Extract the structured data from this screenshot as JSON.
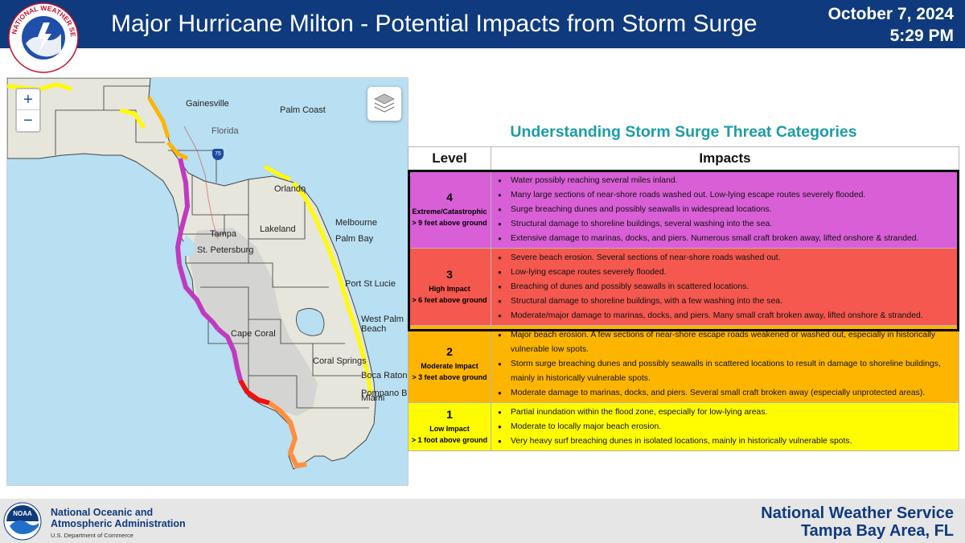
{
  "header": {
    "title": "Major Hurricane Milton - Potential Impacts from Storm Surge",
    "date": "October 7, 2024",
    "time": "5:29 PM",
    "logo_text": "NATIONAL WEATHER SERVICE",
    "logo_icon": "nws-logo",
    "background_color": "#0f3a7d"
  },
  "map": {
    "zoom_in_label": "+",
    "zoom_out_label": "−",
    "layers_icon": "layers-icon",
    "interstate_shield": "75",
    "places": [
      "Gainesville",
      "Palm Coast",
      "Florida",
      "Orlando",
      "Tampa",
      "Lakeland",
      "Melbourne",
      "Palm Bay",
      "St. Petersburg",
      "Port St Lucie",
      "West Palm",
      "Beach",
      "Cape Coral",
      "Boca Raton",
      "Coral Springs",
      "Pompano Be",
      "Miami"
    ],
    "water_color": "#b8dff2",
    "land_color": "#e6e6dc"
  },
  "table": {
    "title": "Understanding Storm Surge Threat Categories",
    "header_level": "Level",
    "header_impacts": "Impacts",
    "levels": [
      {
        "num": "4",
        "name": "Extreme/Catastrophic",
        "sub": "> 9 feet above ground",
        "color": "#d95fd7",
        "impacts": [
          "Water possibly reaching several miles inland.",
          "Many large sections of near-shore roads washed out. Low-lying escape routes severely flooded.",
          "Surge breaching dunes and possibly seawalls in widespread locations.",
          "Structural damage to shoreline buildings, several washing into the sea.",
          "Extensive damage to marinas, docks, and piers. Numerous small craft broken away, lifted onshore & stranded."
        ]
      },
      {
        "num": "3",
        "name": "High Impact",
        "sub": "> 6 feet above ground",
        "color": "#f5584f",
        "impacts": [
          "Severe beach erosion. Several sections of near-shore roads washed out.",
          "Low-lying escape routes severely flooded.",
          "Breaching of dunes and possibly seawalls in scattered locations.",
          "Structural damage to shoreline buildings, with a few washing into the sea.",
          "Moderate/major damage to marinas, docks, and piers. Many small craft broken away, lifted onshore & stranded."
        ]
      },
      {
        "num": "2",
        "name": "Moderate Impact",
        "sub": "> 3 feet above ground",
        "color": "#fdb500",
        "impacts": [
          "Major beach erosion. A few sections of near-shore escape roads weakened or washed out, especially in historically vulnerable low spots.",
          "Storm surge breaching dunes and possibly seawalls in scattered locations to result in damage to shoreline buildings, mainly in historically vulnerable spots.",
          "Moderate damage to marinas, docks, and piers. Several small craft broken away (especially unprotected areas)."
        ]
      },
      {
        "num": "1",
        "name": "Low Impact",
        "sub": "> 1 foot above ground",
        "color": "#fffb00",
        "impacts": [
          "Partial inundation within the flood zone, especially for low-lying areas.",
          "Moderate to locally major beach erosion.",
          "Very heavy surf breaching dunes in isolated locations, mainly in historically vulnerable spots."
        ]
      }
    ]
  },
  "footer": {
    "noaa_line1": "National Oceanic and",
    "noaa_line2": "Atmospheric Administration",
    "noaa_dept": "U.S. Department of Commerce",
    "noaa_icon": "noaa-logo",
    "nws_line1": "National Weather Service",
    "nws_line2": "Tampa Bay Area, FL"
  }
}
